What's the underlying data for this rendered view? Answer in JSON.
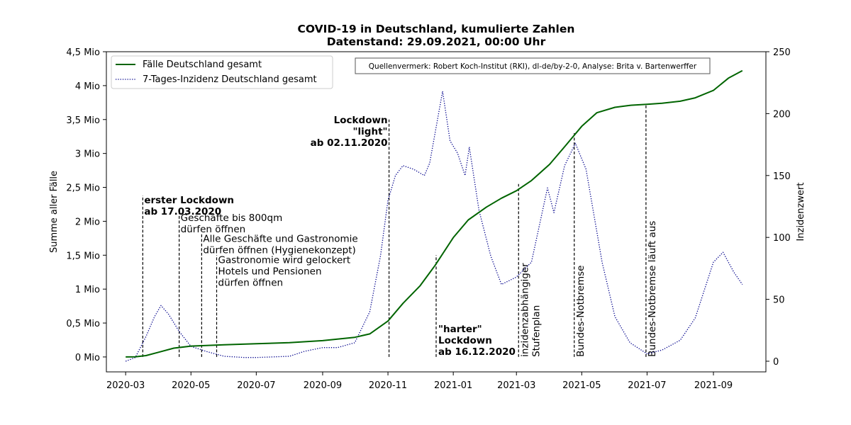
{
  "chart_data": {
    "type": "line",
    "title": "COVID-19 in Deutschland, kumulierte Zahlen",
    "subtitle": "Datenstand: 29.09.2021, 00:00 Uhr",
    "ylabel_left": "Summe aller Fälle",
    "ylabel_right": "Inzidenzwert",
    "source_note": "Quellenvermerk: Robert Koch-Institut (RKI), dl-de/by-2-0, Analyse: Brita v. Bartenwerffer",
    "x_ticks": [
      "2020-03",
      "2020-05",
      "2020-07",
      "2020-09",
      "2020-11",
      "2021-01",
      "2021-03",
      "2021-05",
      "2021-07",
      "2021-09"
    ],
    "y_left_ticks": [
      "0 Mio",
      "0,5 Mio",
      "1 Mio",
      "1,5 Mio",
      "2 Mio",
      "2,5 Mio",
      "3 Mio",
      "3,5 Mio",
      "4 Mio",
      "4,5 Mio"
    ],
    "y_right_ticks": [
      "0",
      "50",
      "100",
      "150",
      "200",
      "250"
    ],
    "y_left_lim": [
      -0.22,
      4.5
    ],
    "y_right_lim": [
      -8.6,
      250
    ],
    "x_lim": [
      "2020-02-12",
      "2021-10-20"
    ],
    "grid": false,
    "legend_position": "top-left",
    "series": [
      {
        "name": "Fälle Deutschland gesamt",
        "axis": "left",
        "unit": "Mio",
        "color": "#006400",
        "style": "solid",
        "points": [
          [
            "2020-03-01",
            0.0
          ],
          [
            "2020-03-10",
            0.002
          ],
          [
            "2020-03-20",
            0.02
          ],
          [
            "2020-04-01",
            0.07
          ],
          [
            "2020-04-15",
            0.13
          ],
          [
            "2020-05-01",
            0.16
          ],
          [
            "2020-06-01",
            0.18
          ],
          [
            "2020-07-01",
            0.195
          ],
          [
            "2020-08-01",
            0.21
          ],
          [
            "2020-09-01",
            0.24
          ],
          [
            "2020-10-01",
            0.29
          ],
          [
            "2020-10-15",
            0.34
          ],
          [
            "2020-11-01",
            0.53
          ],
          [
            "2020-11-15",
            0.79
          ],
          [
            "2020-12-01",
            1.05
          ],
          [
            "2020-12-15",
            1.35
          ],
          [
            "2021-01-01",
            1.76
          ],
          [
            "2021-01-15",
            2.02
          ],
          [
            "2021-02-01",
            2.21
          ],
          [
            "2021-02-15",
            2.34
          ],
          [
            "2021-03-01",
            2.45
          ],
          [
            "2021-03-15",
            2.6
          ],
          [
            "2021-04-01",
            2.84
          ],
          [
            "2021-04-15",
            3.1
          ],
          [
            "2021-05-01",
            3.4
          ],
          [
            "2021-05-15",
            3.6
          ],
          [
            "2021-06-01",
            3.68
          ],
          [
            "2021-06-15",
            3.71
          ],
          [
            "2021-07-01",
            3.725
          ],
          [
            "2021-07-15",
            3.74
          ],
          [
            "2021-08-01",
            3.77
          ],
          [
            "2021-08-15",
            3.82
          ],
          [
            "2021-09-01",
            3.93
          ],
          [
            "2021-09-15",
            4.11
          ],
          [
            "2021-09-28",
            4.22
          ]
        ]
      },
      {
        "name": "7-Tages-Inzidenz Deutschland gesamt",
        "axis": "right",
        "unit": "Inzidenz",
        "color": "#00008b",
        "style": "dotted",
        "points": [
          [
            "2020-03-01",
            0
          ],
          [
            "2020-03-10",
            3
          ],
          [
            "2020-03-20",
            20
          ],
          [
            "2020-03-28",
            36
          ],
          [
            "2020-04-03",
            45
          ],
          [
            "2020-04-10",
            38
          ],
          [
            "2020-04-20",
            24
          ],
          [
            "2020-05-01",
            12
          ],
          [
            "2020-05-15",
            8
          ],
          [
            "2020-06-01",
            4
          ],
          [
            "2020-06-20",
            3
          ],
          [
            "2020-07-01",
            3
          ],
          [
            "2020-08-01",
            4
          ],
          [
            "2020-08-15",
            8
          ],
          [
            "2020-09-01",
            11
          ],
          [
            "2020-09-15",
            11
          ],
          [
            "2020-10-01",
            15
          ],
          [
            "2020-10-15",
            40
          ],
          [
            "2020-10-25",
            85
          ],
          [
            "2020-11-01",
            130
          ],
          [
            "2020-11-08",
            150
          ],
          [
            "2020-11-15",
            158
          ],
          [
            "2020-11-25",
            155
          ],
          [
            "2020-12-05",
            150
          ],
          [
            "2020-12-10",
            160
          ],
          [
            "2020-12-22",
            218
          ],
          [
            "2020-12-29",
            178
          ],
          [
            "2021-01-05",
            168
          ],
          [
            "2021-01-12",
            150
          ],
          [
            "2021-01-16",
            173
          ],
          [
            "2021-01-25",
            122
          ],
          [
            "2021-02-05",
            85
          ],
          [
            "2021-02-15",
            62
          ],
          [
            "2021-03-01",
            68
          ],
          [
            "2021-03-15",
            80
          ],
          [
            "2021-03-30",
            140
          ],
          [
            "2021-04-05",
            120
          ],
          [
            "2021-04-15",
            158
          ],
          [
            "2021-04-25",
            176
          ],
          [
            "2021-05-05",
            155
          ],
          [
            "2021-05-20",
            80
          ],
          [
            "2021-06-01",
            36
          ],
          [
            "2021-06-15",
            15
          ],
          [
            "2021-07-01",
            6
          ],
          [
            "2021-07-15",
            9
          ],
          [
            "2021-08-01",
            17
          ],
          [
            "2021-08-15",
            35
          ],
          [
            "2021-09-01",
            80
          ],
          [
            "2021-09-10",
            88
          ],
          [
            "2021-09-20",
            72
          ],
          [
            "2021-09-28",
            62
          ]
        ]
      }
    ],
    "annotations": [
      {
        "date": "2020-03-17",
        "top": 2.38,
        "lines": [
          "erster Lockdown",
          "ab 17.03.2020"
        ],
        "bold": true,
        "align": "right"
      },
      {
        "date": "2020-04-20",
        "top": 2.12,
        "lines": [
          "Geschäfte bis 800qm",
          "dürfen öffnen"
        ],
        "bold": false,
        "align": "right"
      },
      {
        "date": "2020-05-11",
        "top": 1.81,
        "lines": [
          "Alle Geschäfte und Gastronomie",
          "dürfen öffnen (Hygienekonzept)"
        ],
        "bold": false,
        "align": "right"
      },
      {
        "date": "2020-05-25",
        "top": 1.5,
        "lines": [
          "Gastronomie wird gelockert",
          "Hotels und Pensionen",
          "dürfen öffnen"
        ],
        "bold": false,
        "align": "right"
      },
      {
        "date": "2020-11-02",
        "top": 3.5,
        "lines": [
          "Lockdown",
          "\"light\"",
          "ab 02.11.2020"
        ],
        "bold": true,
        "align": "left"
      },
      {
        "date": "2020-12-16",
        "top": 1.5,
        "lines": [
          "\"harter\"",
          "Lockdown",
          "ab 16.12.2020"
        ],
        "bold": true,
        "align": "right-bottom"
      },
      {
        "date": "2021-03-03",
        "top": 2.55,
        "lines": [
          "inzidenzabhängiger",
          "Stufenplan"
        ],
        "bold": false,
        "align": "rotated"
      },
      {
        "date": "2021-04-24",
        "top": 3.3,
        "lines": [
          "Bundes-Notbremse"
        ],
        "bold": false,
        "align": "rotated"
      },
      {
        "date": "2021-06-30",
        "top": 3.73,
        "lines": [
          "Bundes-Notbremse läuft aus"
        ],
        "bold": false,
        "align": "rotated"
      }
    ]
  }
}
